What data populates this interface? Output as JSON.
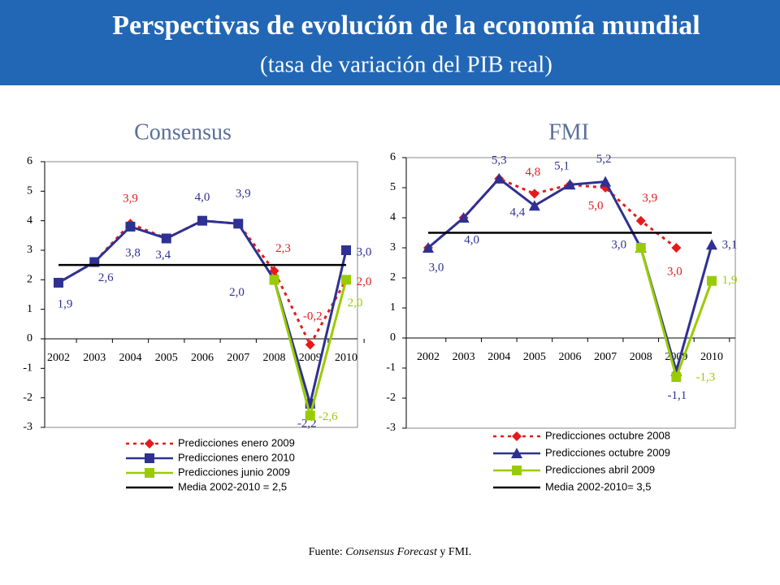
{
  "header": {
    "title": "Perspectivas de evolución de la economía mundial",
    "subtitle": "(tasa de variación del PIB real)"
  },
  "chart_data": [
    {
      "type": "line",
      "title": "Consensus",
      "categories": [
        "2002",
        "2003",
        "2004",
        "2005",
        "2006",
        "2007",
        "2008",
        "2009",
        "2010"
      ],
      "ylim": [
        -3,
        6
      ],
      "yticks": [
        -3,
        -2,
        -1,
        0,
        1,
        2,
        3,
        4,
        5,
        6
      ],
      "series": [
        {
          "name": "Predicciones enero 2009",
          "color": "#e41a1c",
          "dash": true,
          "marker": "diamond",
          "values": [
            1.9,
            2.6,
            3.9,
            3.4,
            4.0,
            3.9,
            2.3,
            -0.2,
            2.0
          ],
          "value_labels": [
            null,
            null,
            "3,9",
            null,
            null,
            null,
            "2,3",
            "-0,2",
            "2,0"
          ]
        },
        {
          "name": "Predicciones enero 2010",
          "color": "#2e3192",
          "dash": false,
          "marker": "square",
          "values": [
            1.9,
            2.6,
            3.8,
            3.4,
            4.0,
            3.9,
            2.0,
            -2.2,
            3.0
          ],
          "value_labels": [
            "1,9",
            "2,6",
            "3,8",
            "3,4",
            "4,0",
            "3,9",
            "2,0",
            "-2,2",
            "3,0"
          ]
        },
        {
          "name": "Predicciones junio 2009",
          "color": "#99cc00",
          "dash": false,
          "marker": "square",
          "values": [
            null,
            null,
            null,
            null,
            null,
            null,
            2.0,
            -2.6,
            2.0
          ],
          "value_labels": [
            null,
            null,
            null,
            null,
            null,
            null,
            null,
            "-2,6",
            "2,0"
          ]
        },
        {
          "name": "Media 2002-2010 = 2,5",
          "color": "#000000",
          "dash": false,
          "marker": "none",
          "values": [
            2.5,
            2.5,
            2.5,
            2.5,
            2.5,
            2.5,
            2.5,
            2.5,
            2.5
          ]
        }
      ]
    },
    {
      "type": "line",
      "title": "FMI",
      "categories": [
        "2002",
        "2003",
        "2004",
        "2005",
        "2006",
        "2007",
        "2008",
        "2009",
        "2010"
      ],
      "ylim": [
        -3,
        6
      ],
      "yticks": [
        -3,
        -2,
        -1,
        0,
        1,
        2,
        3,
        4,
        5,
        6
      ],
      "series": [
        {
          "name": "Predicciones octubre 2008",
          "color": "#e41a1c",
          "dash": true,
          "marker": "diamond",
          "values": [
            3.0,
            4.0,
            5.3,
            4.8,
            5.1,
            5.0,
            3.9,
            3.0,
            null
          ],
          "value_labels": [
            null,
            null,
            null,
            "4,8",
            null,
            "5,0",
            "3,9",
            "3,0",
            null
          ]
        },
        {
          "name": "Predicciones octubre 2009",
          "color": "#2e3192",
          "dash": false,
          "marker": "triangle",
          "values": [
            3.0,
            4.0,
            5.3,
            4.4,
            5.1,
            5.2,
            3.0,
            -1.1,
            3.1
          ],
          "value_labels": [
            "3,0",
            "4,0",
            "5,3",
            "4,4",
            "5,1",
            "5,2",
            "3,0",
            "-1,1",
            "3,1"
          ]
        },
        {
          "name": "Predicciones abril 2009",
          "color": "#99cc00",
          "dash": false,
          "marker": "square",
          "values": [
            null,
            null,
            null,
            null,
            null,
            null,
            3.0,
            -1.3,
            1.9
          ],
          "value_labels": [
            null,
            null,
            null,
            null,
            null,
            null,
            null,
            "-1,3",
            "1,9"
          ]
        },
        {
          "name": "Media 2002-2010= 3,5",
          "color": "#000000",
          "dash": false,
          "marker": "none",
          "values": [
            3.5,
            3.5,
            3.5,
            3.5,
            3.5,
            3.5,
            3.5,
            3.5,
            3.5
          ]
        }
      ]
    }
  ],
  "source": {
    "prefix": "Fuente:",
    "italic": "Consensus Forecast",
    "suffix": "y FMI."
  }
}
